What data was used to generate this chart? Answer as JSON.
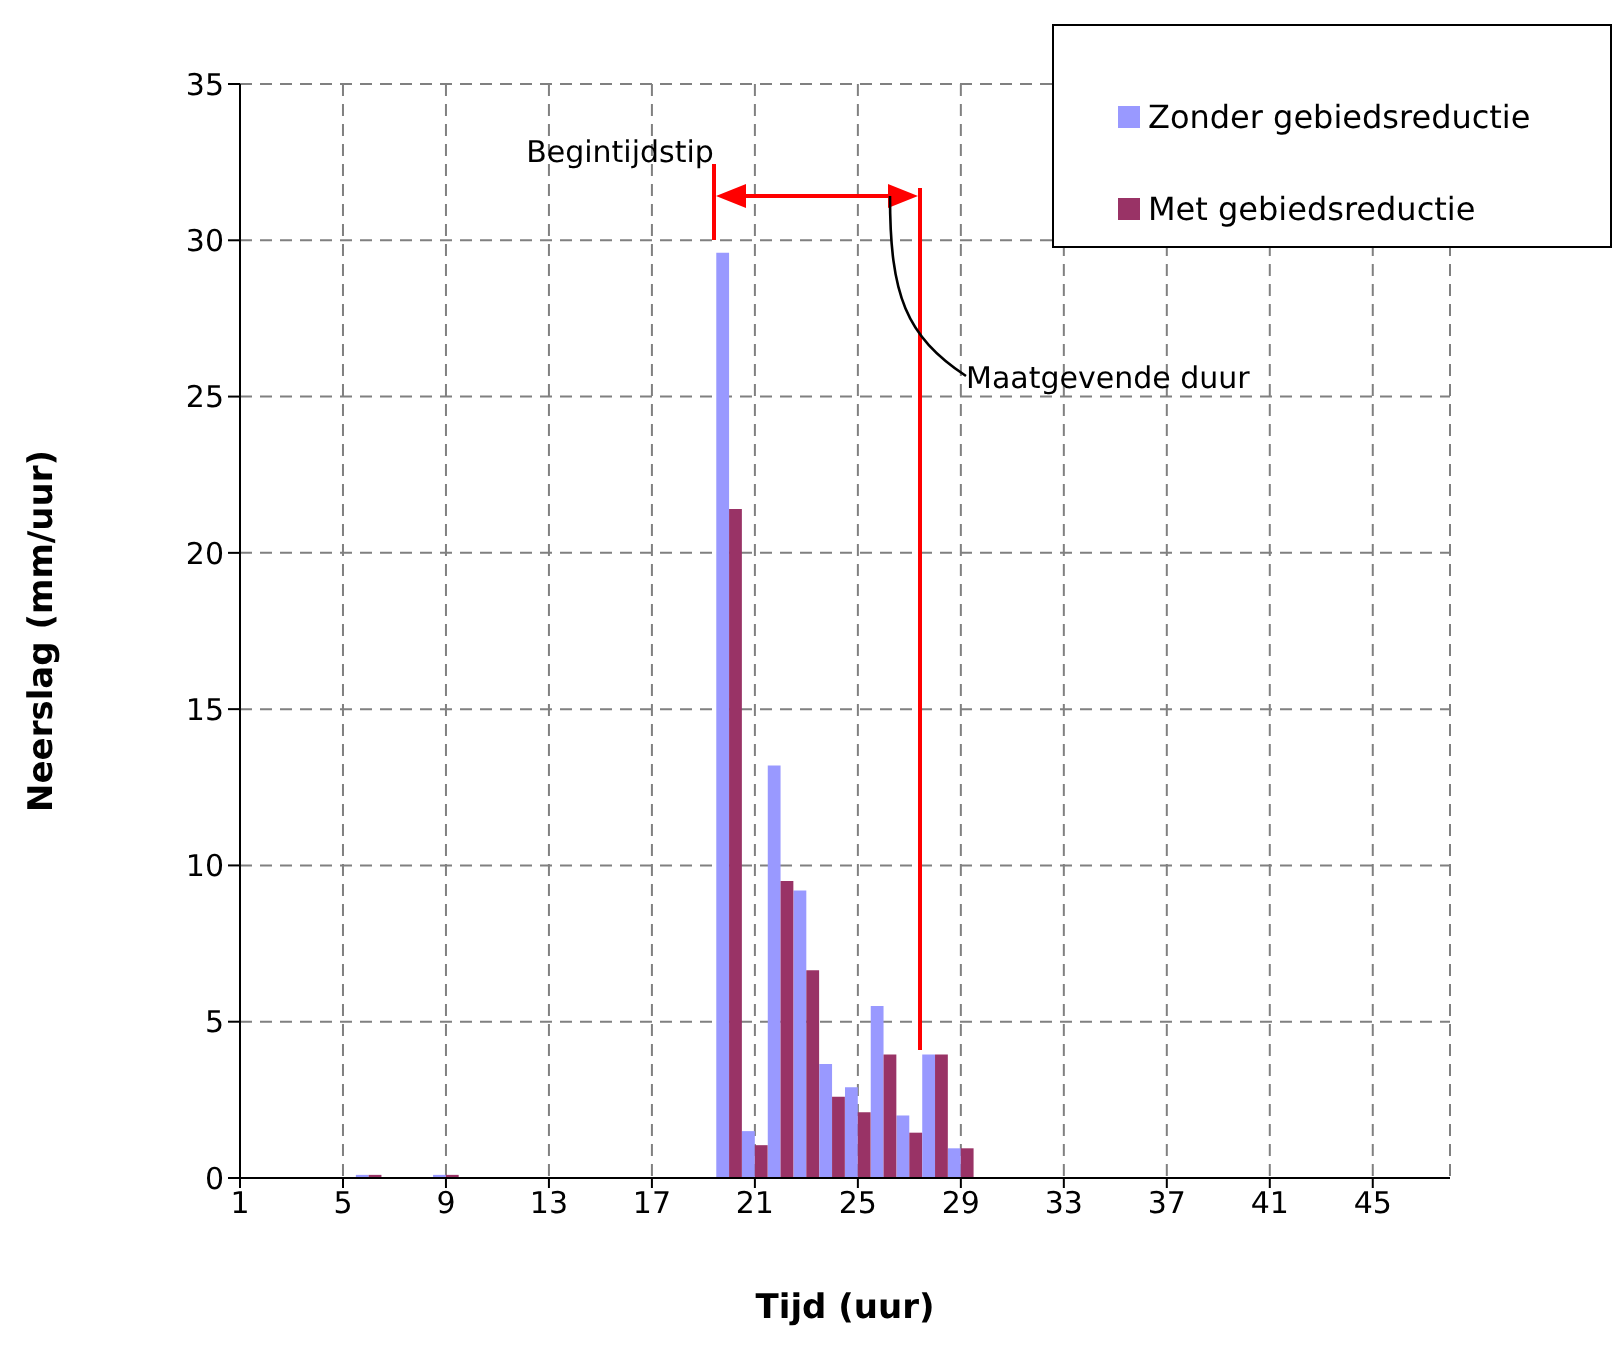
{
  "chart_data": {
    "type": "bar",
    "xlabel": "Tijd (uur)",
    "ylabel": "Neerslag (mm/uur)",
    "categories": [
      "1",
      null,
      null,
      null,
      "5",
      null,
      null,
      null,
      "9",
      null,
      null,
      null,
      "13",
      null,
      null,
      null,
      "17",
      null,
      null,
      null,
      "21",
      null,
      null,
      null,
      "25",
      null,
      null,
      null,
      "29",
      null,
      null,
      null,
      "33",
      null,
      null,
      null,
      "37",
      null,
      null,
      null,
      "41",
      null,
      null,
      null,
      "45",
      null,
      null,
      null
    ],
    "series": [
      {
        "name": "Zonder gebiedsreductie",
        "color": "#9999ff",
        "values": [
          0,
          0,
          0,
          0,
          0,
          0.1,
          0,
          0,
          0.1,
          0,
          0,
          0,
          0,
          0,
          0,
          0,
          0,
          0,
          0,
          29.6,
          1.5,
          13.2,
          9.2,
          3.65,
          2.9,
          5.5,
          2.0,
          3.95,
          0.95,
          0,
          0,
          0,
          0,
          0,
          0,
          0,
          0,
          0,
          0,
          0,
          0,
          0,
          0,
          0,
          0,
          0,
          0,
          0
        ]
      },
      {
        "name": "Met gebiedsreductie",
        "color": "#993366",
        "values": [
          0,
          0,
          0,
          0,
          0,
          0.1,
          0,
          0,
          0.1,
          0,
          0,
          0,
          0,
          0,
          0,
          0,
          0,
          0,
          0,
          21.4,
          1.05,
          9.5,
          6.65,
          2.6,
          2.1,
          3.95,
          1.45,
          3.95,
          0.95,
          0,
          0,
          0,
          0,
          0,
          0,
          0,
          0,
          0,
          0,
          0,
          0,
          0,
          0,
          0,
          0,
          0,
          0,
          0
        ]
      }
    ],
    "ylim": [
      0,
      35
    ],
    "yticks": [
      0,
      5,
      10,
      15,
      20,
      25,
      30,
      35
    ],
    "grid": true,
    "legend": "top right",
    "annotations": [
      "Begintijdstip",
      "Maatgevende duur"
    ]
  }
}
